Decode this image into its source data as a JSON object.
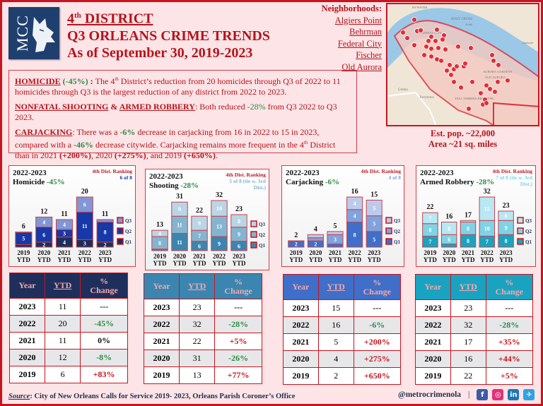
{
  "header": {
    "logo_text": "MCC",
    "title_line1_num": "4",
    "title_line1_sup": "th",
    "title_line1_rest": " DISTRICT",
    "title_line2": "Q3 ORLEANS CRIME TRENDS",
    "title_line3": "As of September 30, 2019-2023"
  },
  "neighborhoods": {
    "label": "Neighborhoods:",
    "items": [
      "Algiers Point",
      "Behrman",
      "Federal City",
      "Fischer",
      "Old Aurora"
    ]
  },
  "map": {
    "labels": [
      "HOLY CROSS",
      "FEDERAL CITY",
      "AURORA GARDENS",
      "OLD AURORA",
      "TALL TIMBERS BRECHTEL",
      "Gretna",
      "Terrytown",
      "BYWATER",
      "Arabi",
      "Chalmette"
    ],
    "marker_color": "#e0303a"
  },
  "population": {
    "line1": "Est. pop. ~22,000",
    "line2": "Area ~21 sq. miles"
  },
  "summary": {
    "homicide_head": "HOMICIDE",
    "homicide_pct": " (-45%) ",
    "homicide_colon": ": ",
    "homicide_text_a": "The 4",
    "homicide_sup": "th",
    "homicide_text_b": " District’s reduction from 20 homicides through Q3 of 2022 to 11 homicides through Q3 is the largest reduction of any district from 2022 to 2023.",
    "shoot_head": "NONFATAL SHOOTING",
    "shoot_amp": " & ",
    "robbery_head": "ARMED ROBBERY",
    "shoot_text_a": ": Both reduced ",
    "shoot_pct": "-28%",
    "shoot_text_b": " from Q3 2022 to Q3 2023.",
    "carjack_head": "CARJACKING",
    "carjack_text_a": ": There was a ",
    "carjack_pct1": "-6%",
    "carjack_text_b": " decrease in carjacking from 16 in 2022 to 15 in 2023, compared with a ",
    "carjack_pct2": "-46%",
    "carjack_text_c": " decrease citywide. Carjacking remains more frequent in the 4",
    "carjack_sup": "th",
    "carjack_text_d": " District than in 2021 ",
    "carjack_p2021": "(+200%)",
    "carjack_text_e": ", 2020 ",
    "carjack_p2020": "(+275%)",
    "carjack_text_f": ", and 2019 ",
    "carjack_p2019": "(+650%)",
    "carjack_text_g": "."
  },
  "chart_data": [
    {
      "type": "bar",
      "stacked": true,
      "title": "2022-2023",
      "subtitle": "Homicide",
      "change": "-45%",
      "ranking_label": "4th Dist. Ranking",
      "ranking": "6 of 8",
      "categories": [
        "2019 YTD",
        "2020 YTD",
        "2021 YTD",
        "2022 YTD",
        "2023 YTD"
      ],
      "totals": [
        6,
        12,
        11,
        20,
        11
      ],
      "series": [
        {
          "name": "Q1",
          "values": [
            1,
            2,
            4,
            3,
            2
          ],
          "color": "#1c2f5c"
        },
        {
          "name": "Q2",
          "values": [
            5,
            6,
            3,
            11,
            8
          ],
          "color": "#1638a8"
        },
        {
          "name": "Q3",
          "values": [
            0,
            4,
            4,
            6,
            1
          ],
          "color": "#7f97d6"
        }
      ],
      "ymax": 20
    },
    {
      "type": "bar",
      "stacked": true,
      "title": "2022-2023",
      "subtitle": "Shooting",
      "change": "-28%",
      "ranking_label": "4th Dist. Ranking",
      "ranking": "5 of 8 (tie w. 3rd Dist.)",
      "categories": [
        "2019 YTD",
        "2020 YTD",
        "2021 YTD",
        "2022 YTD",
        "2023 YTD"
      ],
      "totals": [
        13,
        31,
        22,
        32,
        23
      ],
      "series": [
        {
          "name": "Q1",
          "values": [
            1,
            11,
            6,
            9,
            6
          ],
          "color": "#3b86b0"
        },
        {
          "name": "Q2",
          "values": [
            8,
            11,
            7,
            13,
            9
          ],
          "color": "#84b5d0"
        },
        {
          "name": "Q3",
          "values": [
            4,
            9,
            9,
            10,
            8
          ],
          "color": "#b9d6e6"
        }
      ],
      "ymax": 32
    },
    {
      "type": "bar",
      "stacked": true,
      "title": "2022-2023",
      "subtitle": "Carjacking",
      "change": "-6%",
      "ranking_label": "4th Dist. Ranking",
      "ranking": "4 of 8",
      "categories": [
        "2019 YTD",
        "2020 YTD",
        "2021 YTD",
        "2022 YTD",
        "2023 YTD"
      ],
      "totals": [
        2,
        4,
        5,
        16,
        15
      ],
      "series": [
        {
          "name": "Q1",
          "values": [
            2,
            2,
            1,
            8,
            5
          ],
          "color": "#3f6fc8"
        },
        {
          "name": "Q2",
          "values": [
            0,
            1,
            3,
            4,
            5
          ],
          "color": "#82a2dc"
        },
        {
          "name": "Q3",
          "values": [
            0,
            1,
            1,
            4,
            5
          ],
          "color": "#bccbec"
        }
      ],
      "ymax": 16
    },
    {
      "type": "bar",
      "stacked": true,
      "title": "2022-2023",
      "subtitle": "Armed Robbery",
      "change": "-28%",
      "ranking_label": "4th Dist. Ranking",
      "ranking": "7 of 8 (tie w. 3rd Dist.)",
      "categories": [
        "2019 YTD",
        "2020 YTD",
        "2021 YTD",
        "2022 YTD",
        "2023 YTD"
      ],
      "totals": [
        22,
        16,
        17,
        32,
        23
      ],
      "series": [
        {
          "name": "Q1",
          "values": [
            7,
            2,
            8,
            7,
            8
          ],
          "color": "#1aa3c0"
        },
        {
          "name": "Q2",
          "values": [
            8,
            6,
            8,
            10,
            9
          ],
          "color": "#7fd3e6"
        },
        {
          "name": "Q3",
          "values": [
            7,
            8,
            1,
            15,
            6
          ],
          "color": "#b8e8f3"
        }
      ],
      "ymax": 32
    }
  ],
  "tables": [
    {
      "header_color": "#1f2f5c",
      "headers": [
        "Year",
        "YTD",
        "% Change"
      ],
      "rows": [
        {
          "year": "2023",
          "ytd": "11",
          "change": "---",
          "tone": "neutral"
        },
        {
          "year": "2022",
          "ytd": "20",
          "change": "-45%",
          "tone": "good"
        },
        {
          "year": "2021",
          "ytd": "11",
          "change": "0%",
          "tone": "neutral"
        },
        {
          "year": "2020",
          "ytd": "12",
          "change": "-8%",
          "tone": "good"
        },
        {
          "year": "2019",
          "ytd": "6",
          "change": "+83%",
          "tone": "bad"
        }
      ]
    },
    {
      "header_color": "#3b86b0",
      "headers": [
        "Year",
        "YTD",
        "% Change"
      ],
      "rows": [
        {
          "year": "2023",
          "ytd": "23",
          "change": "---",
          "tone": "neutral"
        },
        {
          "year": "2022",
          "ytd": "32",
          "change": "-28%",
          "tone": "good"
        },
        {
          "year": "2021",
          "ytd": "22",
          "change": "+5%",
          "tone": "bad"
        },
        {
          "year": "2020",
          "ytd": "31",
          "change": "-26%",
          "tone": "good"
        },
        {
          "year": "2019",
          "ytd": "13",
          "change": "+77%",
          "tone": "bad"
        }
      ]
    },
    {
      "header_color": "#3f6fc8",
      "headers": [
        "Year",
        "YTD",
        "% Change"
      ],
      "rows": [
        {
          "year": "2023",
          "ytd": "15",
          "change": "---",
          "tone": "neutral"
        },
        {
          "year": "2022",
          "ytd": "16",
          "change": "-6%",
          "tone": "good"
        },
        {
          "year": "2021",
          "ytd": "5",
          "change": "+200%",
          "tone": "bad"
        },
        {
          "year": "2020",
          "ytd": "4",
          "change": "+275%",
          "tone": "bad"
        },
        {
          "year": "2019",
          "ytd": "2",
          "change": "+650%",
          "tone": "bad"
        }
      ]
    },
    {
      "header_color": "#1aa3c0",
      "headers": [
        "Year",
        "YTD",
        "% Change"
      ],
      "rows": [
        {
          "year": "2023",
          "ytd": "23",
          "change": "---",
          "tone": "neutral"
        },
        {
          "year": "2022",
          "ytd": "32",
          "change": "-28%",
          "tone": "good"
        },
        {
          "year": "2021",
          "ytd": "17",
          "change": "+35%",
          "tone": "bad"
        },
        {
          "year": "2020",
          "ytd": "16",
          "change": "+44%",
          "tone": "bad"
        },
        {
          "year": "2019",
          "ytd": "22",
          "change": "+5%",
          "tone": "bad"
        }
      ]
    }
  ],
  "footer": {
    "source_label": "Source",
    "source_text": ": City of New Orleans Calls for Service 2019- 2023, Orleans Parish Coroner’s Office",
    "handle": "@metrocrimenola",
    "separator": "|",
    "social": [
      {
        "name": "facebook",
        "glyph": "f",
        "color": "#3b5ba8"
      },
      {
        "name": "instagram",
        "glyph": "◎",
        "color": "#e0327a"
      },
      {
        "name": "linkedin",
        "glyph": "in",
        "color": "#1c77b4"
      },
      {
        "name": "twitter",
        "glyph": "✈",
        "color": "#2ea3e6"
      }
    ]
  },
  "colors": {
    "accent_red": "#b4141c",
    "good_green": "#2e8b47",
    "bad_red": "#c8141e"
  }
}
